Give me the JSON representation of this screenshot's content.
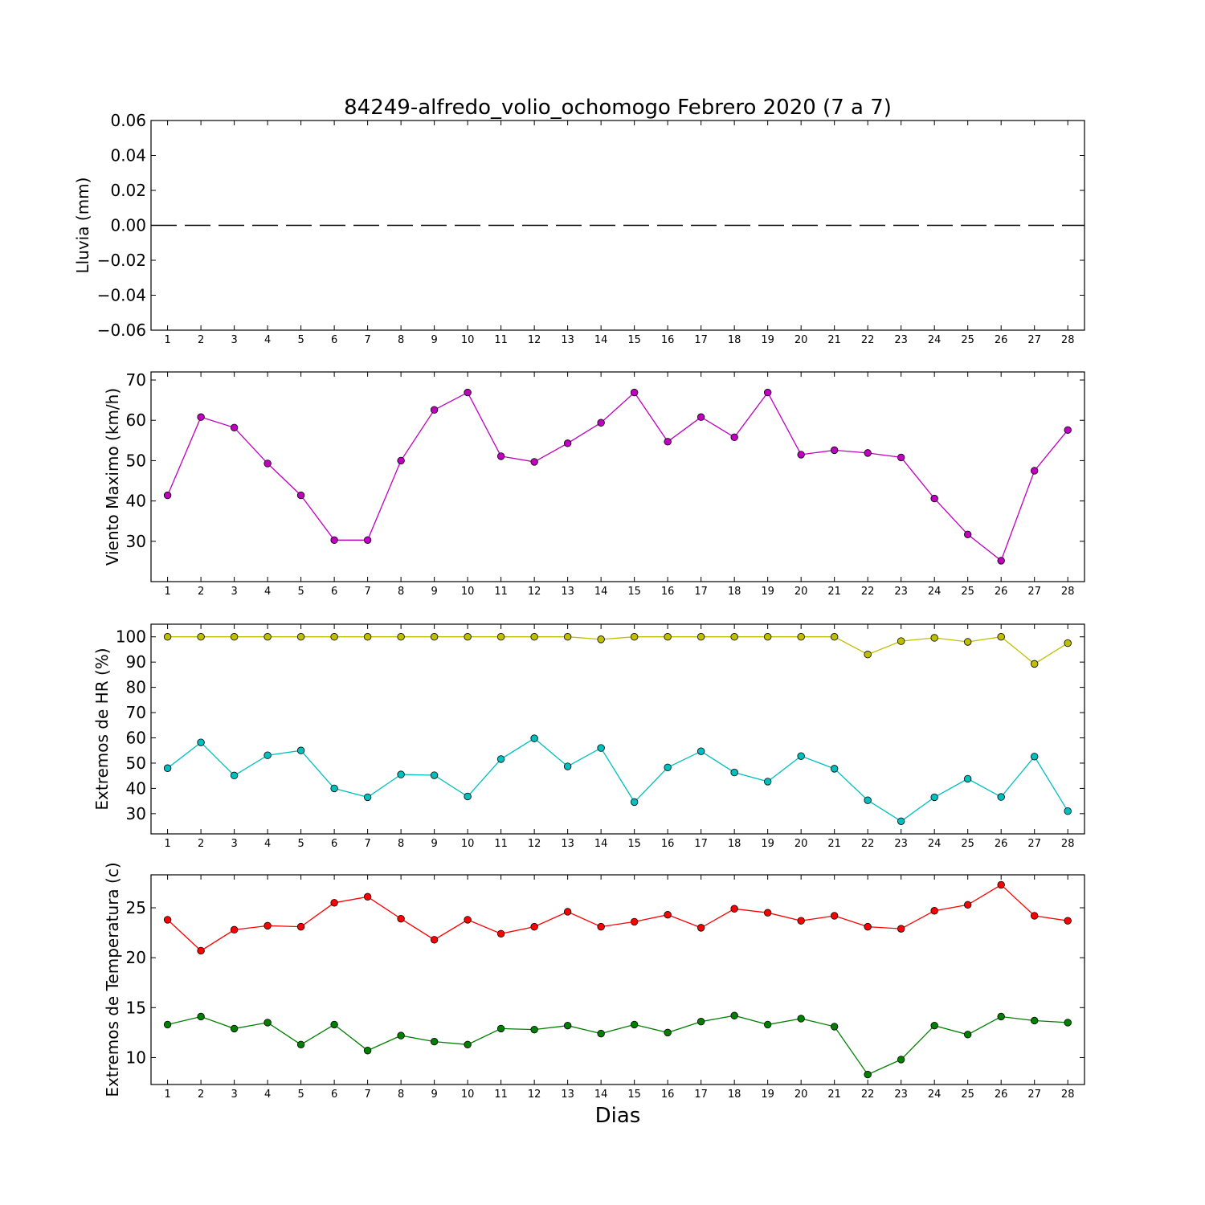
{
  "chart_data": [
    {
      "type": "line",
      "title": "84249-alfredo_volio_ochomogo Febrero 2020  (7 a 7)",
      "ylabel": "Lluvia (mm)",
      "xlabel": "",
      "ylim": [
        -0.06,
        0.06
      ],
      "yticks": [
        0.06,
        0.04,
        0.02,
        0.0,
        -0.02,
        -0.04,
        -0.06
      ],
      "ytick_labels": [
        "0.06",
        "0.04",
        "0.02",
        "0.00",
        "−0.02",
        "−0.04",
        "−0.06"
      ],
      "categories": [
        "1",
        "2",
        "3",
        "4",
        "5",
        "6",
        "7",
        "8",
        "9",
        "10",
        "11",
        "12",
        "13",
        "14",
        "15",
        "16",
        "17",
        "18",
        "19",
        "20",
        "21",
        "22",
        "23",
        "24",
        "25",
        "26",
        "27",
        "28"
      ],
      "series": [
        {
          "color": "#000000",
          "linestyle": "dashed",
          "marker": "none",
          "values": [
            0,
            0,
            0,
            0,
            0,
            0,
            0,
            0,
            0,
            0,
            0,
            0,
            0,
            0,
            0,
            0,
            0,
            0,
            0,
            0,
            0,
            0,
            0,
            0,
            0,
            0,
            0,
            0
          ]
        }
      ]
    },
    {
      "type": "line",
      "ylabel": "Viento Maximo (km/h)",
      "xlabel": "",
      "ylim": [
        20,
        72
      ],
      "yticks": [
        70,
        60,
        50,
        40,
        30
      ],
      "ytick_labels": [
        "70",
        "60",
        "50",
        "40",
        "30"
      ],
      "categories": [
        "1",
        "2",
        "3",
        "4",
        "5",
        "6",
        "7",
        "8",
        "9",
        "10",
        "11",
        "12",
        "13",
        "14",
        "15",
        "16",
        "17",
        "18",
        "19",
        "20",
        "21",
        "22",
        "23",
        "24",
        "25",
        "26",
        "27",
        "28"
      ],
      "series": [
        {
          "color": "#bf00bf",
          "marker": "circle",
          "values": [
            41.4,
            60.8,
            58.2,
            49.3,
            41.4,
            30.3,
            30.3,
            50.0,
            62.6,
            66.9,
            51.1,
            49.7,
            54.3,
            59.4,
            66.9,
            54.7,
            60.8,
            55.8,
            66.9,
            51.5,
            52.6,
            51.9,
            50.8,
            40.6,
            31.7,
            25.2,
            47.5,
            57.6
          ]
        }
      ]
    },
    {
      "type": "line",
      "ylabel": "Extremos de HR (%)",
      "xlabel": "",
      "ylim": [
        22,
        105
      ],
      "yticks": [
        100,
        90,
        80,
        70,
        60,
        50,
        40,
        30
      ],
      "ytick_labels": [
        "100",
        "90",
        "80",
        "70",
        "60",
        "50",
        "40",
        "30"
      ],
      "categories": [
        "1",
        "2",
        "3",
        "4",
        "5",
        "6",
        "7",
        "8",
        "9",
        "10",
        "11",
        "12",
        "13",
        "14",
        "15",
        "16",
        "17",
        "18",
        "19",
        "20",
        "21",
        "22",
        "23",
        "24",
        "25",
        "26",
        "27",
        "28"
      ],
      "series": [
        {
          "color": "#bfbf00",
          "marker": "circle",
          "values": [
            100,
            100,
            100,
            100,
            100,
            100,
            100,
            100,
            100,
            100,
            100,
            100,
            100,
            99,
            100,
            100,
            100,
            100,
            100,
            100,
            100,
            93,
            98.3,
            99.6,
            98,
            100,
            89.3,
            97.5
          ]
        },
        {
          "color": "#00bfbf",
          "marker": "circle",
          "values": [
            48,
            58.2,
            45.1,
            53.1,
            55,
            40,
            36.5,
            45.5,
            45.2,
            36.8,
            51.6,
            59.8,
            48.7,
            56,
            34.6,
            48.3,
            54.7,
            46.3,
            42.7,
            52.8,
            47.8,
            35.3,
            27,
            36.5,
            43.8,
            36.6,
            52.6,
            31
          ]
        }
      ]
    },
    {
      "type": "line",
      "ylabel": "Extremos de Temperatura (c)",
      "xlabel": "Dias",
      "ylim": [
        7.3,
        28.3
      ],
      "yticks": [
        25,
        20,
        15,
        10
      ],
      "ytick_labels": [
        "25",
        "20",
        "15",
        "10"
      ],
      "categories": [
        "1",
        "2",
        "3",
        "4",
        "5",
        "6",
        "7",
        "8",
        "9",
        "10",
        "11",
        "12",
        "13",
        "14",
        "15",
        "16",
        "17",
        "18",
        "19",
        "20",
        "21",
        "22",
        "23",
        "24",
        "25",
        "26",
        "27",
        "28"
      ],
      "series": [
        {
          "color": "#ff0000",
          "marker": "circle",
          "values": [
            23.8,
            20.7,
            22.8,
            23.2,
            23.1,
            25.5,
            26.1,
            23.9,
            21.8,
            23.8,
            22.4,
            23.1,
            24.6,
            23.1,
            23.6,
            24.3,
            23,
            24.9,
            24.5,
            23.7,
            24.2,
            23.1,
            22.9,
            24.7,
            25.3,
            27.3,
            24.2,
            23.7
          ]
        },
        {
          "color": "#007f00",
          "marker": "circle",
          "values": [
            13.3,
            14.1,
            12.9,
            13.5,
            11.3,
            13.3,
            10.7,
            12.2,
            11.6,
            11.3,
            12.9,
            12.8,
            13.2,
            12.4,
            13.3,
            12.5,
            13.6,
            14.2,
            13.3,
            13.9,
            13.1,
            8.3,
            9.8,
            13.2,
            12.3,
            14.1,
            13.7,
            13.5
          ]
        }
      ]
    }
  ]
}
